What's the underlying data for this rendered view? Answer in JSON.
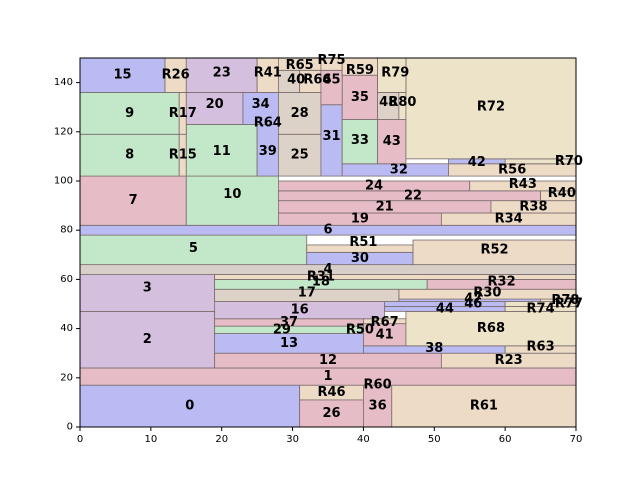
{
  "chart_data": {
    "type": "treemap-rectangles",
    "title": "",
    "xlabel": "",
    "ylabel": "",
    "xlim": [
      0,
      70
    ],
    "ylim": [
      0,
      150
    ],
    "xticks": [
      "0",
      "10",
      "20",
      "30",
      "40",
      "50",
      "60",
      "70"
    ],
    "yticks": [
      "0",
      "20",
      "40",
      "60",
      "80",
      "100",
      "120",
      "140"
    ],
    "grid": false,
    "colors": {
      "blue": "#bbbbf3",
      "red": "#e6bcc7",
      "green": "#c2e8c9",
      "purple": "#d5bfde",
      "tan": "#ddd2c8",
      "olive": "#ece3c8",
      "gray": "#d8d0c8",
      "orange": "#eddbc6",
      "edge": "#7a6b6b"
    },
    "rects": [
      {
        "label": "0",
        "x0": 0,
        "x1": 31,
        "y0": 0,
        "y1": 17,
        "color": "blue"
      },
      {
        "label": "R46",
        "x0": 31,
        "x1": 44,
        "y0": 11,
        "y1": 17,
        "color": "orange",
        "lx": 35.5,
        "ly": 14
      },
      {
        "label": "R60",
        "x0": 44,
        "x1": 44,
        "y0": 17,
        "y1": 17,
        "color": "orange",
        "lx": 42,
        "ly": 17
      },
      {
        "label": "26",
        "x0": 31,
        "x1": 40,
        "y0": 0,
        "y1": 11,
        "color": "red"
      },
      {
        "label": "36",
        "x0": 40,
        "x1": 44,
        "y0": 0,
        "y1": 17,
        "color": "red",
        "ly": 8.5
      },
      {
        "label": "R61",
        "x0": 44,
        "x1": 70,
        "y0": 0,
        "y1": 17,
        "color": "orange"
      },
      {
        "label": "1",
        "x0": 0,
        "x1": 70,
        "y0": 17,
        "y1": 24,
        "color": "red",
        "lx": 35
      },
      {
        "label": "2",
        "x0": 0,
        "x1": 19,
        "y0": 24,
        "y1": 47,
        "color": "purple"
      },
      {
        "label": "12",
        "x0": 19,
        "x1": 51,
        "y0": 24,
        "y1": 30,
        "color": "red"
      },
      {
        "label": "R23",
        "x0": 51,
        "x1": 70,
        "y0": 24,
        "y1": 30,
        "color": "orange"
      },
      {
        "label": "13",
        "x0": 19,
        "x1": 40,
        "y0": 30,
        "y1": 38,
        "color": "blue"
      },
      {
        "label": "38",
        "x0": 40,
        "x1": 60,
        "y0": 30,
        "y1": 33,
        "color": "blue",
        "lx": 50,
        "ly": 32
      },
      {
        "label": "R63",
        "x0": 60,
        "x1": 70,
        "y0": 30,
        "y1": 33,
        "color": "orange",
        "ly": 32.5
      },
      {
        "label": "29",
        "x0": 19,
        "x1": 40,
        "y0": 38,
        "y1": 41,
        "color": "green",
        "lx": 28.5,
        "ly": 39.5
      },
      {
        "label": "R50",
        "x0": 40,
        "x1": 40,
        "y0": 38,
        "y1": 41,
        "color": "orange",
        "lx": 39.5,
        "ly": 39.5
      },
      {
        "label": "37",
        "x0": 19,
        "x1": 40,
        "y0": 41,
        "y1": 44,
        "color": "red",
        "lx": 29.5,
        "ly": 42.5
      },
      {
        "label": "41",
        "x0": 40,
        "x1": 46,
        "y0": 33,
        "y1": 42,
        "color": "red"
      },
      {
        "label": "R67",
        "x0": 40,
        "x1": 46,
        "y0": 42,
        "y1": 44,
        "color": "orange",
        "lx": 43,
        "ly": 42.5
      },
      {
        "label": "R68",
        "x0": 46,
        "x1": 70,
        "y0": 33,
        "y1": 47,
        "color": "olive",
        "lx": 58,
        "ly": 40
      },
      {
        "label": "16",
        "x0": 19,
        "x1": 43,
        "y0": 44,
        "y1": 51,
        "color": "purple",
        "lx": 31,
        "ly": 47.5
      },
      {
        "label": "44",
        "x0": 43,
        "x1": 60,
        "y0": 47,
        "y1": 49,
        "color": "blue",
        "lx": 51.5,
        "ly": 48
      },
      {
        "label": "R74",
        "x0": 60,
        "x1": 70,
        "y0": 47,
        "y1": 49,
        "color": "olive",
        "lx": 65,
        "ly": 48
      },
      {
        "label": "46",
        "x0": 43,
        "x1": 60,
        "y0": 49,
        "y1": 51,
        "color": "blue",
        "lx": 55.5,
        "ly": 50
      },
      {
        "label": "R77",
        "x0": 60,
        "x1": 70,
        "y0": 49,
        "y1": 51,
        "color": "olive",
        "lx": 69,
        "ly": 50
      },
      {
        "label": "47",
        "x0": 43,
        "x1": 65,
        "y0": 51,
        "y1": 52,
        "color": "blue",
        "lx": 55.5,
        "ly": 52
      },
      {
        "label": "R78",
        "x0": 65,
        "x1": 70,
        "y0": 51,
        "y1": 52,
        "color": "olive",
        "lx": 68.5,
        "ly": 51.5
      },
      {
        "label": "R30",
        "x0": 45,
        "x1": 70,
        "y0": 52,
        "y1": 56,
        "color": "orange",
        "lx": 57.5,
        "ly": 54.5
      },
      {
        "label": "3",
        "x0": 0,
        "x1": 19,
        "y0": 47,
        "y1": 66,
        "color": "purple"
      },
      {
        "label": "17",
        "x0": 19,
        "x1": 45,
        "y0": 51,
        "y1": 56,
        "color": "tan",
        "lx": 32,
        "ly": 54.5
      },
      {
        "label": "18",
        "x0": 19,
        "x1": 49,
        "y0": 56,
        "y1": 60,
        "color": "green",
        "lx": 34,
        "ly": 59
      },
      {
        "label": "R32",
        "x0": 49,
        "x1": 70,
        "y0": 56,
        "y1": 60,
        "color": "red",
        "lx": 59.5,
        "ly": 59
      },
      {
        "label": "R31",
        "x0": 19,
        "x1": 70,
        "y0": 60,
        "y1": 62,
        "color": "orange",
        "lx": 34,
        "ly": 61
      },
      {
        "label": "4",
        "x0": 0,
        "x1": 70,
        "y0": 62,
        "y1": 66,
        "color": "gray",
        "lx": 35,
        "ly": 64
      },
      {
        "label": "5",
        "x0": 0,
        "x1": 32,
        "y0": 66,
        "y1": 78,
        "color": "green",
        "ly": 72.5
      },
      {
        "label": "30",
        "x0": 32,
        "x1": 47,
        "y0": 66,
        "y1": 71,
        "color": "blue"
      },
      {
        "label": "R51",
        "x0": 32,
        "x1": 47,
        "y0": 71,
        "y1": 74,
        "color": "orange",
        "lx": 40,
        "ly": 75
      },
      {
        "label": "R52",
        "x0": 47,
        "x1": 70,
        "y0": 66,
        "y1": 76,
        "color": "orange",
        "ly": 72
      },
      {
        "label": "6",
        "x0": 0,
        "x1": 70,
        "y0": 78,
        "y1": 82,
        "color": "blue",
        "lx": 35
      },
      {
        "label": "7",
        "x0": 0,
        "x1": 15,
        "y0": 82,
        "y1": 102,
        "color": "red"
      },
      {
        "label": "10",
        "x0": 15,
        "x1": 28,
        "y0": 82,
        "y1": 102,
        "color": "green",
        "lx": 21.5,
        "ly": 94.5
      },
      {
        "label": "19",
        "x0": 28,
        "x1": 51,
        "y0": 82,
        "y1": 87,
        "color": "red",
        "lx": 39.5,
        "ly": 84.5
      },
      {
        "label": "R34",
        "x0": 51,
        "x1": 70,
        "y0": 82,
        "y1": 87,
        "color": "orange",
        "lx": 60.5,
        "ly": 84.5
      },
      {
        "label": "21",
        "x0": 28,
        "x1": 58,
        "y0": 87,
        "y1": 92,
        "color": "red",
        "lx": 43,
        "ly": 89.5
      },
      {
        "label": "R38",
        "x0": 58,
        "x1": 70,
        "y0": 87,
        "y1": 92,
        "color": "orange",
        "lx": 64,
        "ly": 89.5
      },
      {
        "label": "22",
        "x0": 28,
        "x1": 65,
        "y0": 92,
        "y1": 96,
        "color": "red",
        "lx": 47,
        "ly": 94
      },
      {
        "label": "R40",
        "x0": 65,
        "x1": 70,
        "y0": 92,
        "y1": 96,
        "color": "orange",
        "lx": 68,
        "ly": 95
      },
      {
        "label": "24",
        "x0": 28,
        "x1": 55,
        "y0": 96,
        "y1": 100,
        "color": "red",
        "lx": 41.5,
        "ly": 98
      },
      {
        "label": "R43",
        "x0": 55,
        "x1": 70,
        "y0": 96,
        "y1": 100,
        "color": "orange",
        "lx": 62.5,
        "ly": 98.5
      },
      {
        "label": "8",
        "x0": 0,
        "x1": 14,
        "y0": 102,
        "y1": 119,
        "color": "green",
        "ly": 110.5
      },
      {
        "label": "R15",
        "x0": 14,
        "x1": 15,
        "y0": 102,
        "y1": 119,
        "color": "orange",
        "lx": 14.5,
        "ly": 110.5
      },
      {
        "label": "11",
        "x0": 15,
        "x1": 25,
        "y0": 102,
        "y1": 123,
        "color": "green",
        "lx": 20,
        "ly": 112
      },
      {
        "label": "39",
        "x0": 25,
        "x1": 28,
        "y0": 102,
        "y1": 123,
        "color": "blue",
        "lx": 26.5,
        "ly": 112
      },
      {
        "label": "25",
        "x0": 28,
        "x1": 34,
        "y0": 102,
        "y1": 119,
        "color": "tan",
        "lx": 31,
        "ly": 110.5
      },
      {
        "label": "31",
        "x0": 34,
        "x1": 37,
        "y0": 102,
        "y1": 131,
        "color": "blue",
        "lx": 35.5,
        "ly": 118
      },
      {
        "label": "32",
        "x0": 37,
        "x1": 52,
        "y0": 102,
        "y1": 107,
        "color": "blue",
        "lx": 45,
        "ly": 104.5
      },
      {
        "label": "R56",
        "x0": 52,
        "x1": 70,
        "y0": 102,
        "y1": 107,
        "color": "orange",
        "lx": 61,
        "ly": 104.5
      },
      {
        "label": "42",
        "x0": 52,
        "x1": 70,
        "y0": 107,
        "y1": 109,
        "color": "blue",
        "lx": 56,
        "ly": 107.5
      },
      {
        "label": "R70",
        "x0": 60,
        "x1": 70,
        "y0": 107,
        "y1": 109,
        "color": "olive",
        "lx": 69,
        "ly": 108
      },
      {
        "label": "33",
        "x0": 37,
        "x1": 42,
        "y0": 107,
        "y1": 125,
        "color": "green",
        "lx": 39.5,
        "ly": 116.5
      },
      {
        "label": "43",
        "x0": 42,
        "x1": 46,
        "y0": 107,
        "y1": 125,
        "color": "red",
        "lx": 44,
        "ly": 116
      },
      {
        "label": "9",
        "x0": 0,
        "x1": 14,
        "y0": 119,
        "y1": 136,
        "color": "green",
        "ly": 127.5
      },
      {
        "label": "R17",
        "x0": 14,
        "x1": 15,
        "y0": 119,
        "y1": 136,
        "color": "orange",
        "lx": 14.5,
        "ly": 127.5
      },
      {
        "label": "20",
        "x0": 15,
        "x1": 23,
        "y0": 123,
        "y1": 136,
        "color": "purple",
        "lx": 19,
        "ly": 131
      },
      {
        "label": "34",
        "x0": 23,
        "x1": 28,
        "y0": 123,
        "y1": 136,
        "color": "blue",
        "lx": 25.5,
        "ly": 131
      },
      {
        "label": "R64",
        "x0": 25,
        "x1": 28,
        "y0": 123,
        "y1": 123,
        "color": "orange",
        "lx": 26.5,
        "ly": 123.5
      },
      {
        "label": "28",
        "x0": 28,
        "x1": 34,
        "y0": 119,
        "y1": 136,
        "color": "tan",
        "lx": 31,
        "ly": 127.5
      },
      {
        "label": "35",
        "x0": 37,
        "x1": 42,
        "y0": 125,
        "y1": 143,
        "color": "red",
        "lx": 39.5,
        "ly": 134
      },
      {
        "label": "48",
        "x0": 42,
        "x1": 45,
        "y0": 125,
        "y1": 136,
        "color": "tan",
        "lx": 43.5,
        "ly": 132
      },
      {
        "label": "R80",
        "x0": 45,
        "x1": 46,
        "y0": 125,
        "y1": 136,
        "color": "olive",
        "lx": 45.5,
        "ly": 132
      },
      {
        "label": "R72",
        "x0": 46,
        "x1": 70,
        "y0": 109,
        "y1": 150,
        "color": "olive",
        "ly": 130
      },
      {
        "label": "15",
        "x0": 0,
        "x1": 12,
        "y0": 136,
        "y1": 150,
        "color": "blue",
        "lx": 6,
        "ly": 143
      },
      {
        "label": "R26",
        "x0": 12,
        "x1": 15,
        "y0": 136,
        "y1": 150,
        "color": "orange",
        "lx": 13.5,
        "ly": 143
      },
      {
        "label": "23",
        "x0": 15,
        "x1": 25,
        "y0": 136,
        "y1": 150,
        "color": "purple",
        "lx": 20,
        "ly": 144
      },
      {
        "label": "R41",
        "x0": 25,
        "x1": 28,
        "y0": 136,
        "y1": 150,
        "color": "orange",
        "lx": 26.5,
        "ly": 144
      },
      {
        "label": "40",
        "x0": 28,
        "x1": 31,
        "y0": 136,
        "y1": 145,
        "color": "tan",
        "lx": 30.5,
        "ly": 141
      },
      {
        "label": "R66",
        "x0": 31,
        "x1": 34,
        "y0": 136,
        "y1": 145,
        "color": "orange",
        "lx": 33.5,
        "ly": 141
      },
      {
        "label": "R65",
        "x0": 28,
        "x1": 34,
        "y0": 145,
        "y1": 150,
        "color": "orange",
        "lx": 31,
        "ly": 147
      },
      {
        "label": "45",
        "x0": 34,
        "x1": 37,
        "y0": 131,
        "y1": 145,
        "color": "red",
        "lx": 35.5,
        "ly": 141
      },
      {
        "label": "R75",
        "x0": 34,
        "x1": 37,
        "y0": 145,
        "y1": 150,
        "color": "orange",
        "lx": 35.5,
        "ly": 149
      },
      {
        "label": "R59",
        "x0": 37,
        "x1": 42,
        "y0": 143,
        "y1": 150,
        "color": "orange",
        "lx": 39.5,
        "ly": 145
      },
      {
        "label": "R79",
        "x0": 42,
        "x1": 46,
        "y0": 136,
        "y1": 150,
        "color": "olive",
        "lx": 44.5,
        "ly": 144
      }
    ]
  }
}
